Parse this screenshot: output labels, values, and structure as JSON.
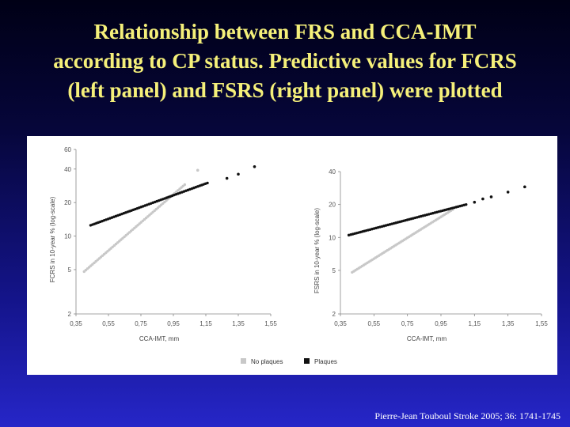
{
  "title_lines": [
    "Relationship  between   FRS  and  CCA-IMT",
    "according to CP status. Predictive values for FCRS",
    "(left panel) and FSRS (right panel) were plotted"
  ],
  "citation": "Pierre-Jean Touboul Stroke 2005; 36: 1741-1745",
  "legend": [
    {
      "label": "No plaques",
      "color": "#c8c8c8"
    },
    {
      "label": "Plaques",
      "color": "#111111"
    }
  ],
  "chart_data": [
    {
      "type": "scatter",
      "panel": "left",
      "xlabel": "CCA-IMT, mm",
      "ylabel": "FCRS in 10-year % (log-scale)",
      "xlim": [
        0.35,
        1.55
      ],
      "ylim": [
        2,
        60
      ],
      "y_log": true,
      "xticks": [
        "0,35",
        "0,55",
        "0,75",
        "0,95",
        "1,15",
        "1,35",
        "1,55"
      ],
      "yticks": [
        2,
        5,
        10,
        20,
        40,
        60
      ],
      "grid": false,
      "series": [
        {
          "name": "No plaques",
          "color": "#c8c8c8",
          "segment": {
            "x": [
              0.4,
              1.02
            ],
            "y": [
              4.8,
              29
            ]
          },
          "points": [
            [
              1.1,
              39
            ]
          ]
        },
        {
          "name": "Plaques",
          "color": "#111111",
          "segment": {
            "x": [
              0.44,
              1.16
            ],
            "y": [
              12.5,
              30
            ]
          },
          "points": [
            [
              1.28,
              33
            ],
            [
              1.35,
              36
            ],
            [
              1.45,
              42
            ]
          ]
        }
      ]
    },
    {
      "type": "scatter",
      "panel": "right",
      "xlabel": "CCA-IMT, mm",
      "ylabel": "FSRS in 10-year % (log-scale)",
      "xlim": [
        0.35,
        1.55
      ],
      "ylim": [
        2,
        40
      ],
      "y_log": true,
      "xticks": [
        "0,35",
        "0,55",
        "0,75",
        "0,95",
        "1,15",
        "1,35",
        "1,55"
      ],
      "yticks": [
        2,
        5,
        10,
        20,
        40
      ],
      "grid": false,
      "series": [
        {
          "name": "No plaques",
          "color": "#c8c8c8",
          "segment": {
            "x": [
              0.42,
              1.02
            ],
            "y": [
              4.8,
              18
            ]
          },
          "points": []
        },
        {
          "name": "Plaques",
          "color": "#111111",
          "segment": {
            "x": [
              0.4,
              1.1
            ],
            "y": [
              10.5,
              20
            ]
          },
          "points": [
            [
              1.15,
              21
            ],
            [
              1.2,
              22.5
            ],
            [
              1.25,
              23.5
            ],
            [
              1.35,
              26
            ],
            [
              1.45,
              29
            ]
          ]
        }
      ]
    }
  ]
}
